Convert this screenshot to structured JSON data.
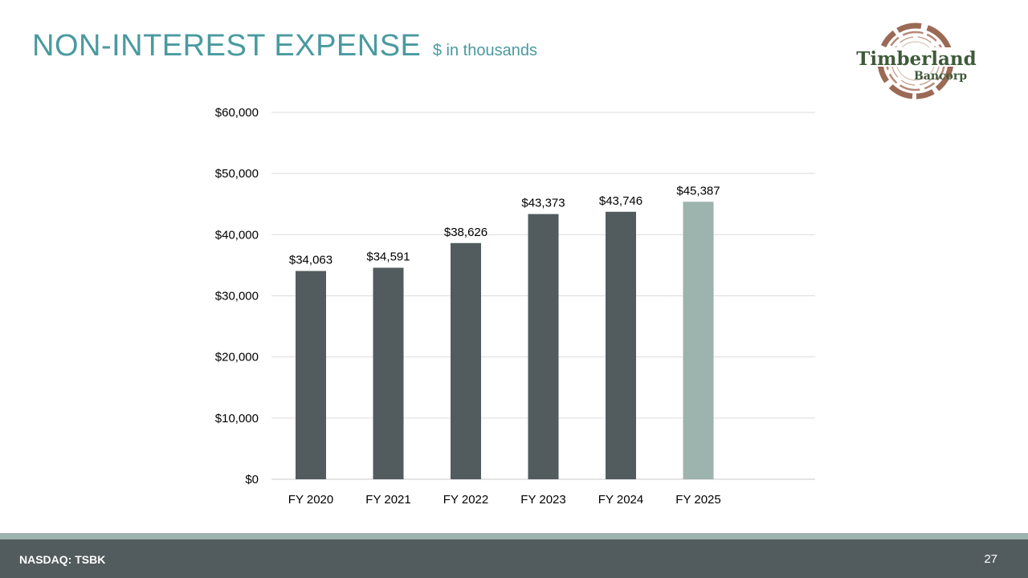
{
  "header": {
    "title": "NON-INTEREST EXPENSE",
    "subtitle": "$ in thousands"
  },
  "logo": {
    "line1": "Timberland",
    "line2": "Bancorp",
    "colors": {
      "ring": "#9a6a55",
      "text": "#3f5a3a"
    }
  },
  "chart_data": {
    "type": "bar",
    "categories": [
      "FY 2020",
      "FY 2021",
      "FY 2022",
      "FY 2023",
      "FY 2024",
      "FY 2025"
    ],
    "values": [
      34063,
      34591,
      38626,
      43373,
      43746,
      45387
    ],
    "data_labels": [
      "$34,063",
      "$34,591",
      "$38,626",
      "$43,373",
      "$43,746",
      "$45,387"
    ],
    "ylim": [
      0,
      60000
    ],
    "yticks": [
      0,
      10000,
      20000,
      30000,
      40000,
      50000,
      60000
    ],
    "ytick_labels": [
      "$0",
      "$10,000",
      "$20,000",
      "$30,000",
      "$40,000",
      "$50,000",
      "$60,000"
    ],
    "grid": true,
    "colors": {
      "default": "#525b5d",
      "highlight": "#9db3ad"
    },
    "highlight_index": 5
  },
  "footer": {
    "ticker": "NASDAQ: TSBK",
    "page_number": "27"
  }
}
